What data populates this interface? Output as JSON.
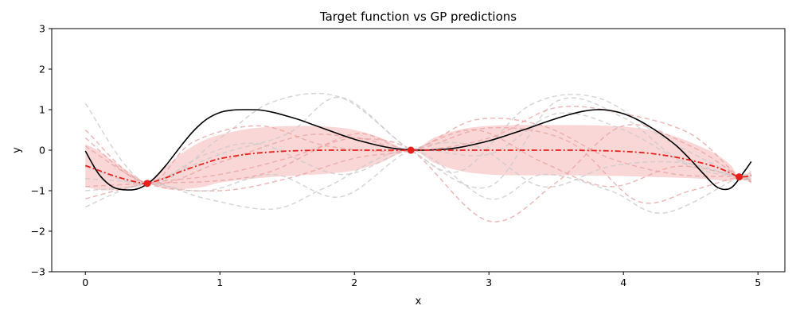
{
  "chart_data": {
    "type": "line",
    "title": "Target function vs GP predictions",
    "xlabel": "x",
    "ylabel": "y",
    "xlim": [
      -0.25,
      5.2
    ],
    "ylim": [
      -3,
      3
    ],
    "xticks": [
      0,
      1,
      2,
      3,
      4,
      5
    ],
    "yticks": [
      -3,
      -2,
      -1,
      0,
      1,
      2,
      3
    ],
    "xtick_labels": [
      "0",
      "1",
      "2",
      "3",
      "4",
      "5"
    ],
    "ytick_labels": [
      "−3",
      "−2",
      "−1",
      "0",
      "1",
      "2",
      "3"
    ],
    "grid": false,
    "legend": "none",
    "x_range": [
      0,
      4.95
    ],
    "target_function": {
      "style": "solid",
      "color": "#000000",
      "x": [
        0,
        0.1,
        0.2,
        0.3,
        0.4,
        0.5,
        0.6,
        0.7,
        0.8,
        0.9,
        1.0,
        1.1,
        1.2,
        1.3,
        1.4,
        1.5,
        1.6,
        1.7,
        1.8,
        1.9,
        2.0,
        2.1,
        2.2,
        2.3,
        2.4,
        2.5,
        2.6,
        2.7,
        2.8,
        2.9,
        3.0,
        3.1,
        3.2,
        3.3,
        3.4,
        3.5,
        3.6,
        3.7,
        3.8,
        3.9,
        4.0,
        4.1,
        4.2,
        4.3,
        4.4,
        4.5,
        4.6,
        4.7,
        4.8,
        4.9,
        4.95
      ],
      "y": [
        -0.02,
        -0.59,
        -0.9,
        -0.98,
        -0.94,
        -0.73,
        -0.37,
        0.06,
        0.46,
        0.76,
        0.93,
        0.99,
        1.0,
        0.99,
        0.93,
        0.84,
        0.74,
        0.62,
        0.5,
        0.38,
        0.27,
        0.18,
        0.1,
        0.04,
        0.01,
        0.0,
        0.01,
        0.03,
        0.08,
        0.15,
        0.23,
        0.33,
        0.44,
        0.55,
        0.67,
        0.78,
        0.88,
        0.96,
        1.0,
        0.98,
        0.9,
        0.76,
        0.57,
        0.35,
        0.09,
        -0.24,
        -0.6,
        -0.92,
        -0.93,
        -0.52,
        -0.28
      ]
    },
    "gp_mean": {
      "style": "dashdot",
      "color": "#e8201c",
      "x": [
        0,
        0.1,
        0.2,
        0.3,
        0.4,
        0.46,
        0.6,
        0.7,
        0.8,
        0.9,
        1.0,
        1.2,
        1.4,
        1.6,
        1.8,
        2.0,
        2.2,
        2.42,
        2.6,
        2.8,
        3.0,
        3.2,
        3.4,
        3.6,
        3.8,
        4.0,
        4.2,
        4.4,
        4.6,
        4.7,
        4.8,
        4.86,
        4.95
      ],
      "y": [
        -0.38,
        -0.5,
        -0.62,
        -0.72,
        -0.8,
        -0.82,
        -0.68,
        -0.54,
        -0.42,
        -0.31,
        -0.21,
        -0.1,
        -0.04,
        -0.01,
        0.0,
        0.0,
        0.0,
        0.0,
        0.0,
        0.0,
        0.0,
        0.0,
        0.0,
        0.0,
        -0.01,
        -0.03,
        -0.08,
        -0.18,
        -0.33,
        -0.43,
        -0.57,
        -0.66,
        -0.63
      ]
    },
    "confidence_band": {
      "color": "#f4a6a6",
      "x": [
        0,
        0.1,
        0.2,
        0.3,
        0.4,
        0.46,
        0.6,
        0.7,
        0.8,
        0.9,
        1.0,
        1.2,
        1.4,
        1.6,
        1.8,
        2.0,
        2.2,
        2.42,
        2.6,
        2.8,
        3.0,
        3.2,
        3.4,
        3.6,
        3.8,
        4.0,
        4.2,
        4.4,
        4.6,
        4.7,
        4.8,
        4.86,
        4.95
      ],
      "upper": [
        0.15,
        -0.02,
        -0.25,
        -0.48,
        -0.7,
        -0.82,
        -0.4,
        -0.12,
        0.1,
        0.27,
        0.38,
        0.52,
        0.58,
        0.6,
        0.58,
        0.5,
        0.3,
        0.0,
        0.32,
        0.52,
        0.6,
        0.62,
        0.62,
        0.62,
        0.61,
        0.58,
        0.5,
        0.32,
        0.05,
        -0.12,
        -0.38,
        -0.66,
        -0.5
      ],
      "lower": [
        -0.9,
        -0.98,
        -0.99,
        -0.96,
        -0.9,
        -0.82,
        -0.96,
        -0.96,
        -0.94,
        -0.89,
        -0.8,
        -0.72,
        -0.66,
        -0.62,
        -0.58,
        -0.5,
        -0.3,
        0.0,
        -0.32,
        -0.52,
        -0.6,
        -0.62,
        -0.62,
        -0.62,
        -0.63,
        -0.64,
        -0.66,
        -0.68,
        -0.71,
        -0.74,
        -0.76,
        -0.66,
        -0.76
      ]
    },
    "observations": {
      "color": "#e8201c",
      "x": [
        0.46,
        2.42,
        4.86
      ],
      "y": [
        -0.82,
        0.0,
        -0.66
      ]
    },
    "samples": [
      {
        "color": "#e8a0a0",
        "x": [
          0,
          0.46,
          1.0,
          1.6,
          2.0,
          2.42,
          3.0,
          3.5,
          4.0,
          4.5,
          4.86,
          4.95
        ],
        "y": [
          0.5,
          -0.82,
          -0.3,
          0.35,
          0.3,
          0.0,
          -1.75,
          -0.8,
          0.6,
          0.1,
          -0.66,
          -0.78
        ]
      },
      {
        "color": "#c8c8c8",
        "x": [
          0,
          0.46,
          1.0,
          1.4,
          1.9,
          2.42,
          2.8,
          3.3,
          3.8,
          4.3,
          4.86,
          4.95
        ],
        "y": [
          1.15,
          -0.82,
          0.3,
          1.2,
          1.3,
          0.0,
          -0.5,
          1.1,
          1.3,
          0.3,
          -0.66,
          -0.7
        ]
      },
      {
        "color": "#c8c8c8",
        "x": [
          0,
          0.46,
          0.9,
          1.4,
          1.8,
          2.42,
          3.0,
          3.4,
          3.9,
          4.3,
          4.86,
          4.95
        ],
        "y": [
          -1.4,
          -0.82,
          -1.2,
          -1.45,
          -0.9,
          0.0,
          -1.2,
          -0.6,
          -1.0,
          -1.55,
          -0.66,
          -0.6
        ]
      },
      {
        "color": "#e8a0a0",
        "x": [
          0,
          0.46,
          1.0,
          1.5,
          2.0,
          2.42,
          2.9,
          3.4,
          3.9,
          4.4,
          4.86,
          4.95
        ],
        "y": [
          -1.2,
          -0.82,
          -0.6,
          -0.2,
          0.3,
          0.0,
          0.75,
          0.6,
          -0.2,
          -0.6,
          -0.66,
          -0.8
        ]
      },
      {
        "color": "#c8c8c8",
        "x": [
          0,
          0.46,
          0.9,
          1.3,
          1.9,
          2.42,
          3.0,
          3.5,
          4.0,
          4.5,
          4.86,
          4.95
        ],
        "y": [
          -0.4,
          -0.82,
          -0.1,
          0.15,
          -0.6,
          0.0,
          -0.1,
          0.9,
          0.5,
          -0.4,
          -0.66,
          -0.65
        ]
      },
      {
        "color": "#e8a0a0",
        "x": [
          0,
          0.46,
          1.0,
          1.5,
          2.0,
          2.42,
          2.9,
          3.4,
          3.9,
          4.4,
          4.86,
          4.95
        ],
        "y": [
          0.1,
          -0.82,
          -1.0,
          -0.7,
          -0.2,
          0.0,
          0.5,
          -0.3,
          -0.9,
          -0.4,
          -0.66,
          -0.75
        ]
      },
      {
        "color": "#c8c8c8",
        "x": [
          0,
          0.46,
          1.0,
          1.5,
          1.9,
          2.42,
          3.0,
          3.5,
          4.0,
          4.4,
          4.86,
          4.95
        ],
        "y": [
          -1.0,
          -0.82,
          -0.1,
          0.4,
          1.3,
          0.0,
          -0.9,
          1.2,
          0.8,
          -0.2,
          -0.66,
          -0.7
        ]
      },
      {
        "color": "#e8a0a0",
        "x": [
          0,
          0.46,
          0.8,
          1.3,
          1.8,
          2.42,
          3.0,
          3.6,
          4.1,
          4.5,
          4.86,
          4.95
        ],
        "y": [
          0.3,
          -0.82,
          0.2,
          0.6,
          0.1,
          0.0,
          0.55,
          0.2,
          -1.25,
          -1.0,
          -0.66,
          -0.8
        ]
      },
      {
        "color": "#c8c8c8",
        "x": [
          0,
          0.46,
          0.9,
          1.4,
          1.9,
          2.42,
          2.9,
          3.4,
          3.9,
          4.4,
          4.86,
          4.95
        ],
        "y": [
          -0.7,
          -0.82,
          -1.0,
          -0.6,
          -1.15,
          0.0,
          0.1,
          -0.9,
          -0.4,
          -0.3,
          -0.66,
          -0.72
        ]
      },
      {
        "color": "#e8a0a0",
        "x": [
          0,
          0.46,
          1.0,
          1.4,
          2.0,
          2.42,
          3.0,
          3.5,
          4.0,
          4.5,
          4.86,
          4.95
        ],
        "y": [
          -0.9,
          -0.82,
          -0.75,
          -0.5,
          0.4,
          0.0,
          0.3,
          1.05,
          0.9,
          0.4,
          -0.66,
          -0.6
        ]
      }
    ]
  }
}
